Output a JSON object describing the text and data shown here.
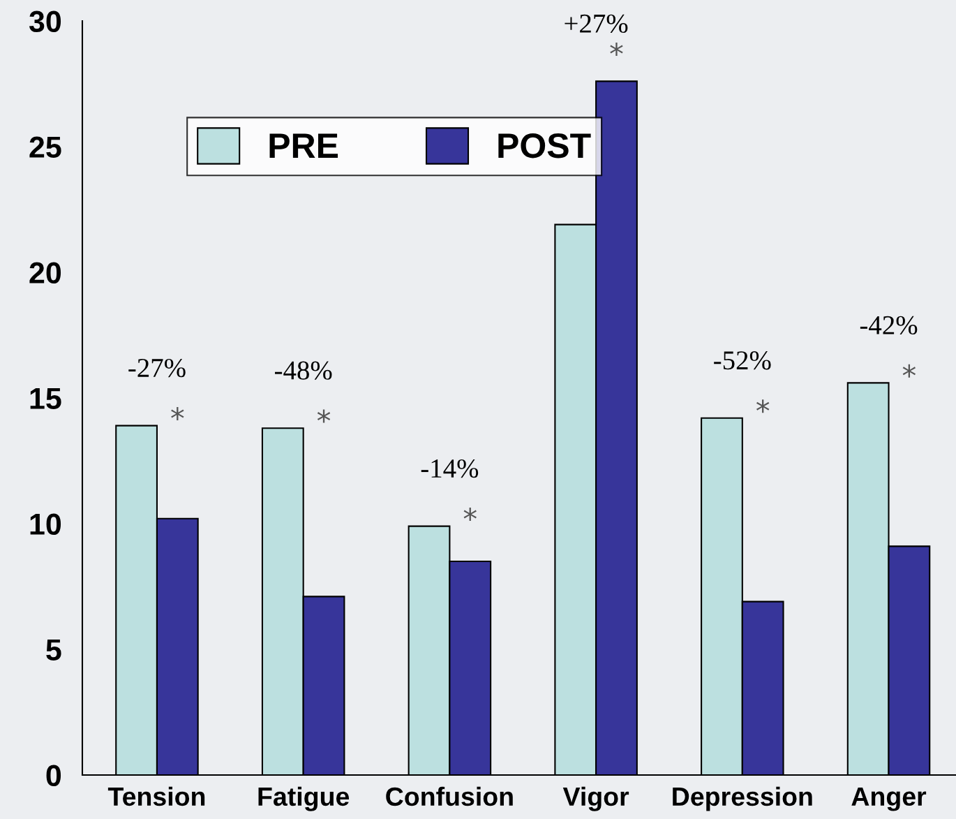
{
  "chart_data": {
    "type": "bar",
    "categories": [
      "Tension",
      "Fatigue",
      "Confusion",
      "Vigor",
      "Depression",
      "Anger"
    ],
    "series": [
      {
        "name": "PRE",
        "color": "#bce0e0",
        "values": [
          13.9,
          13.8,
          9.9,
          21.9,
          14.2,
          15.6
        ]
      },
      {
        "name": "POST",
        "color": "#37359a",
        "values": [
          10.2,
          7.1,
          8.5,
          27.6,
          6.9,
          9.1
        ]
      }
    ],
    "ylim": [
      0,
      30
    ],
    "yticks": [
      0,
      5,
      10,
      15,
      20,
      25,
      30
    ],
    "grid": false,
    "legend": "top left",
    "annotations": [
      "-27%",
      "*",
      "-48%",
      "*",
      "-14%",
      "*",
      "+27%",
      "*",
      "-52%",
      "*",
      "-42%",
      "*"
    ]
  }
}
